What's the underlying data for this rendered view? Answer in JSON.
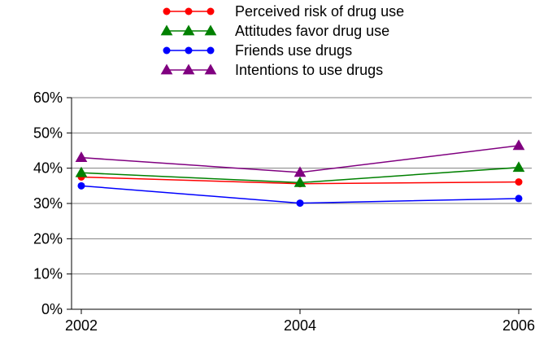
{
  "chart_data": {
    "type": "line",
    "title": "",
    "xlabel": "",
    "ylabel": "",
    "x": [
      2002,
      2004,
      2006
    ],
    "x_tick_labels": [
      "2002",
      "2004",
      "2006"
    ],
    "y_tick_labels": [
      "0%",
      "10%",
      "20%",
      "30%",
      "40%",
      "50%",
      "60%"
    ],
    "y_ticks": [
      0,
      10,
      20,
      30,
      40,
      50,
      60
    ],
    "ylim": [
      0,
      60
    ],
    "y_unit": "percent",
    "grid": "horizontal",
    "legend_position": "top-center",
    "series": [
      {
        "name": "Perceived risk of drug use",
        "values": [
          37.5,
          35.6,
          36.1
        ],
        "color": "#ff0000",
        "marker": "circle"
      },
      {
        "name": "Attitudes favor drug use",
        "values": [
          38.7,
          35.9,
          40.2
        ],
        "color": "#008000",
        "marker": "triangle"
      },
      {
        "name": "Friends use drugs",
        "values": [
          35.0,
          30.1,
          31.4
        ],
        "color": "#0000ff",
        "marker": "circle"
      },
      {
        "name": "Intentions to use drugs",
        "values": [
          43.0,
          38.8,
          46.4
        ],
        "color": "#800080",
        "marker": "triangle"
      }
    ]
  }
}
